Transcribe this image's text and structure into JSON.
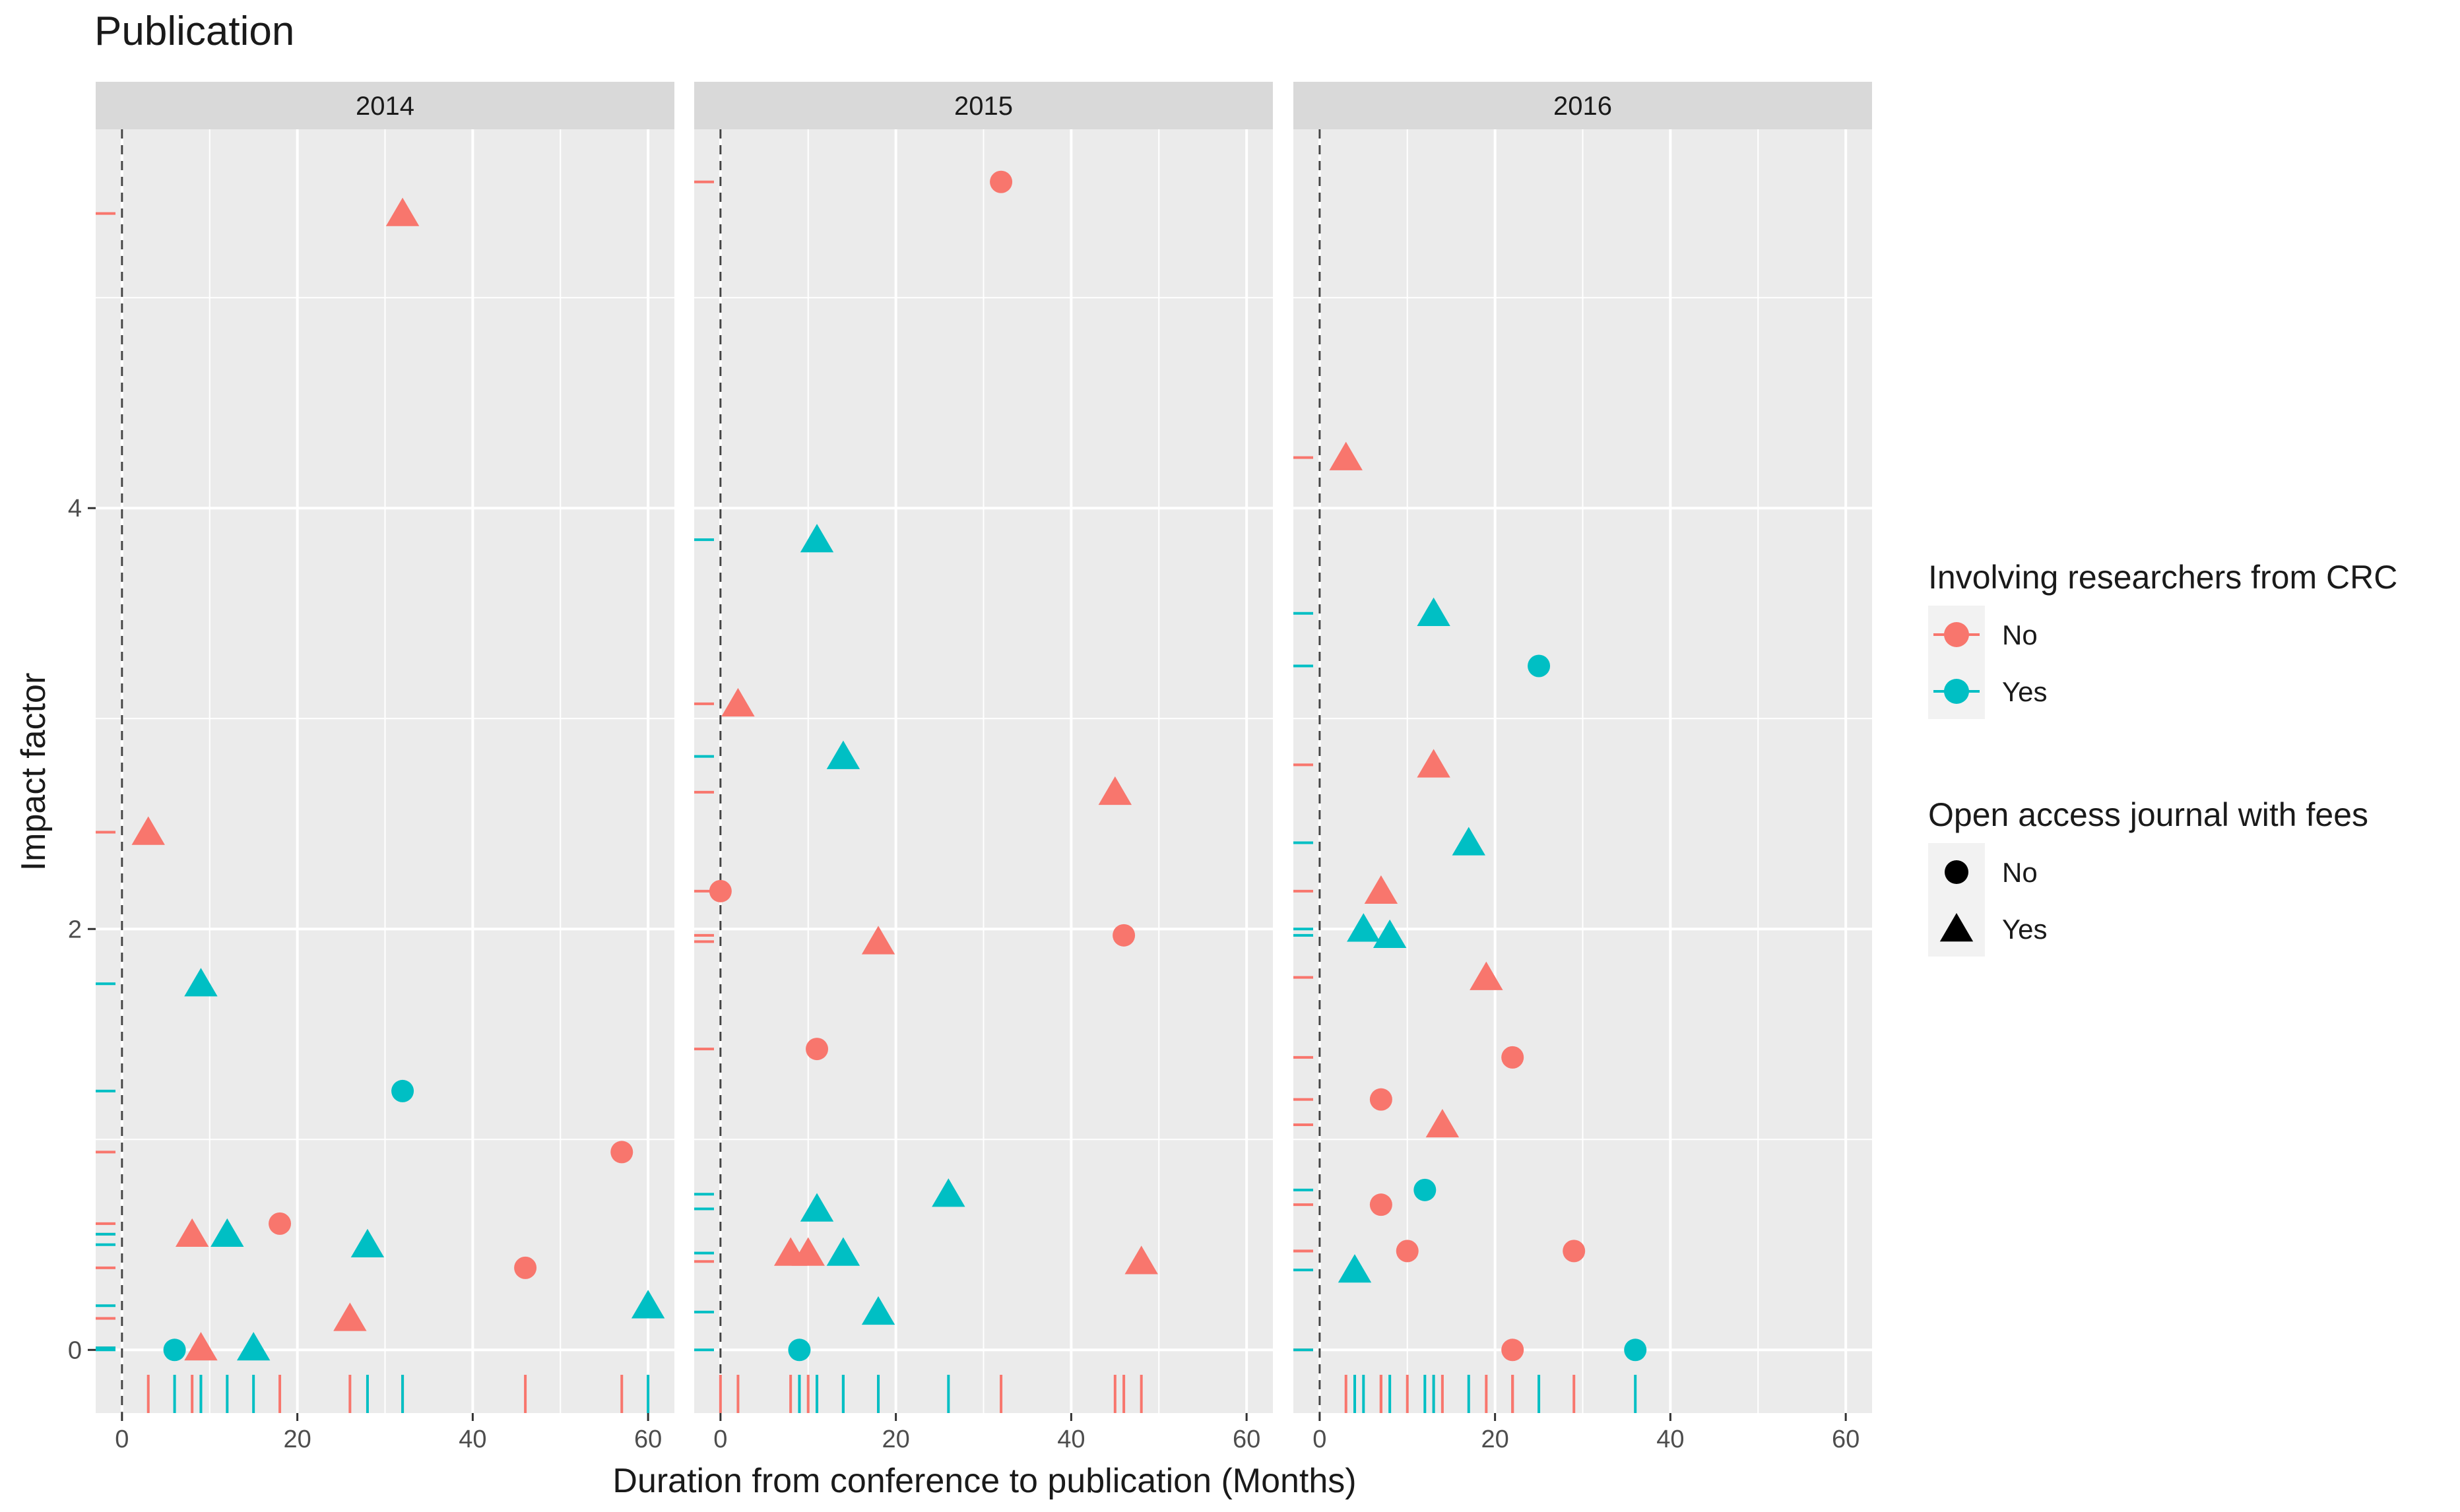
{
  "colors": {
    "no": "#F8766D",
    "yes": "#00BFC4",
    "panel_bg": "#EBEBEB",
    "strip_bg": "#D9D9D9",
    "grid": "#FFFFFF",
    "black": "#000000"
  },
  "chart_data": {
    "type": "scatter",
    "title": "Publication",
    "xlabel": "Duration from conference to publication (Months)",
    "ylabel": "Impact factor",
    "xlim": [
      -3,
      63
    ],
    "ylim": [
      -0.3,
      5.8
    ],
    "xticks": [
      0,
      20,
      40,
      60
    ],
    "yticks": [
      0,
      2,
      4
    ],
    "x_tick_labels": [
      "0",
      "20",
      "40",
      "60"
    ],
    "y_tick_labels": [
      "0",
      "2",
      "4"
    ],
    "reference_line_x": 0,
    "grid": true,
    "rug": true,
    "legend_position": "right",
    "facets": [
      {
        "label": "2014",
        "points": [
          {
            "x": 3,
            "y": 2.46,
            "crc": "No",
            "oa": "Yes"
          },
          {
            "x": 8,
            "y": 0.55,
            "crc": "No",
            "oa": "Yes"
          },
          {
            "x": 9,
            "y": 0.01,
            "crc": "No",
            "oa": "Yes"
          },
          {
            "x": 18,
            "y": 0.6,
            "crc": "No",
            "oa": "No"
          },
          {
            "x": 26,
            "y": 0.15,
            "crc": "No",
            "oa": "Yes"
          },
          {
            "x": 32,
            "y": 5.4,
            "crc": "No",
            "oa": "Yes"
          },
          {
            "x": 46,
            "y": 0.39,
            "crc": "No",
            "oa": "No"
          },
          {
            "x": 57,
            "y": 0.94,
            "crc": "No",
            "oa": "No"
          },
          {
            "x": 6,
            "y": 0.0,
            "crc": "Yes",
            "oa": "No"
          },
          {
            "x": 9,
            "y": 1.74,
            "crc": "Yes",
            "oa": "Yes"
          },
          {
            "x": 12,
            "y": 0.55,
            "crc": "Yes",
            "oa": "Yes"
          },
          {
            "x": 15,
            "y": 0.01,
            "crc": "Yes",
            "oa": "Yes"
          },
          {
            "x": 28,
            "y": 0.5,
            "crc": "Yes",
            "oa": "Yes"
          },
          {
            "x": 32,
            "y": 1.23,
            "crc": "Yes",
            "oa": "No"
          },
          {
            "x": 60,
            "y": 0.21,
            "crc": "Yes",
            "oa": "Yes"
          }
        ]
      },
      {
        "label": "2015",
        "points": [
          {
            "x": 0,
            "y": 2.18,
            "crc": "No",
            "oa": "No"
          },
          {
            "x": 2,
            "y": 3.07,
            "crc": "No",
            "oa": "Yes"
          },
          {
            "x": 8,
            "y": 0.46,
            "crc": "No",
            "oa": "Yes"
          },
          {
            "x": 10,
            "y": 0.46,
            "crc": "No",
            "oa": "Yes"
          },
          {
            "x": 11,
            "y": 1.43,
            "crc": "No",
            "oa": "No"
          },
          {
            "x": 18,
            "y": 1.94,
            "crc": "No",
            "oa": "Yes"
          },
          {
            "x": 32,
            "y": 5.55,
            "crc": "No",
            "oa": "No"
          },
          {
            "x": 45,
            "y": 2.65,
            "crc": "No",
            "oa": "Yes"
          },
          {
            "x": 46,
            "y": 1.97,
            "crc": "No",
            "oa": "No"
          },
          {
            "x": 48,
            "y": 0.42,
            "crc": "No",
            "oa": "Yes"
          },
          {
            "x": 9,
            "y": 0.0,
            "crc": "Yes",
            "oa": "No"
          },
          {
            "x": 11,
            "y": 3.85,
            "crc": "Yes",
            "oa": "Yes"
          },
          {
            "x": 11,
            "y": 0.67,
            "crc": "Yes",
            "oa": "Yes"
          },
          {
            "x": 14,
            "y": 2.82,
            "crc": "Yes",
            "oa": "Yes"
          },
          {
            "x": 14,
            "y": 0.46,
            "crc": "Yes",
            "oa": "Yes"
          },
          {
            "x": 18,
            "y": 0.18,
            "crc": "Yes",
            "oa": "Yes"
          },
          {
            "x": 26,
            "y": 0.74,
            "crc": "Yes",
            "oa": "Yes"
          }
        ]
      },
      {
        "label": "2016",
        "points": [
          {
            "x": 3,
            "y": 4.24,
            "crc": "No",
            "oa": "Yes"
          },
          {
            "x": 7,
            "y": 2.18,
            "crc": "No",
            "oa": "Yes"
          },
          {
            "x": 7,
            "y": 1.19,
            "crc": "No",
            "oa": "No"
          },
          {
            "x": 7,
            "y": 0.69,
            "crc": "No",
            "oa": "No"
          },
          {
            "x": 10,
            "y": 0.47,
            "crc": "No",
            "oa": "No"
          },
          {
            "x": 13,
            "y": 2.78,
            "crc": "No",
            "oa": "Yes"
          },
          {
            "x": 14,
            "y": 1.07,
            "crc": "No",
            "oa": "Yes"
          },
          {
            "x": 19,
            "y": 1.77,
            "crc": "No",
            "oa": "Yes"
          },
          {
            "x": 22,
            "y": 1.39,
            "crc": "No",
            "oa": "No"
          },
          {
            "x": 22,
            "y": 0.0,
            "crc": "No",
            "oa": "No"
          },
          {
            "x": 29,
            "y": 0.47,
            "crc": "No",
            "oa": "No"
          },
          {
            "x": 4,
            "y": 0.38,
            "crc": "Yes",
            "oa": "Yes"
          },
          {
            "x": 5,
            "y": 2.0,
            "crc": "Yes",
            "oa": "Yes"
          },
          {
            "x": 8,
            "y": 1.97,
            "crc": "Yes",
            "oa": "Yes"
          },
          {
            "x": 12,
            "y": 0.76,
            "crc": "Yes",
            "oa": "No"
          },
          {
            "x": 13,
            "y": 3.5,
            "crc": "Yes",
            "oa": "Yes"
          },
          {
            "x": 17,
            "y": 2.41,
            "crc": "Yes",
            "oa": "Yes"
          },
          {
            "x": 25,
            "y": 3.25,
            "crc": "Yes",
            "oa": "No"
          },
          {
            "x": 36,
            "y": 0.0,
            "crc": "Yes",
            "oa": "No"
          }
        ]
      }
    ],
    "legends": [
      {
        "title": "Involving researchers from CRC",
        "entries": [
          {
            "label": "No",
            "color_key": "no"
          },
          {
            "label": "Yes",
            "color_key": "yes"
          }
        ]
      },
      {
        "title": "Open access journal with fees",
        "entries": [
          {
            "label": "No",
            "shape": "circle"
          },
          {
            "label": "Yes",
            "shape": "triangle"
          }
        ]
      }
    ]
  }
}
